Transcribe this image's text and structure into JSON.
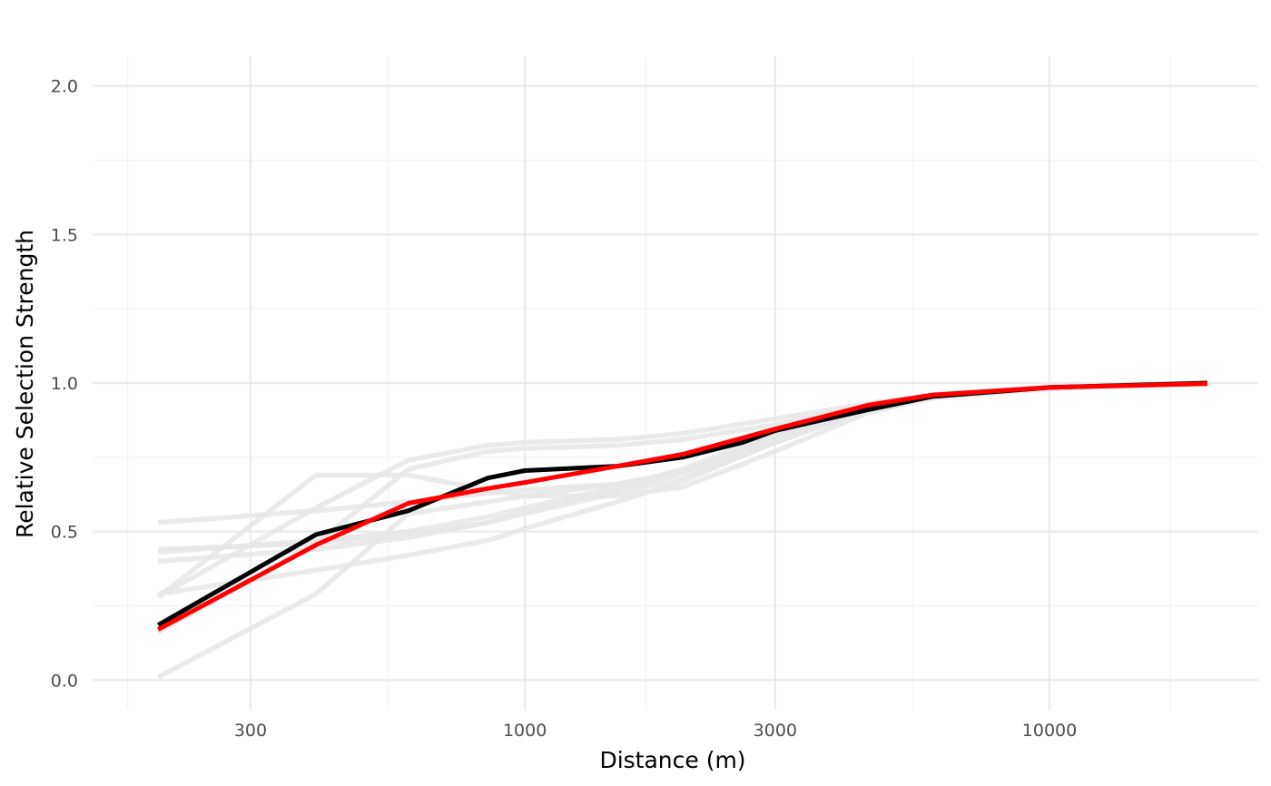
{
  "chart_data": {
    "type": "line",
    "xlabel": "Distance (m)",
    "ylabel": "Relative Selection Strength",
    "x_scale": "log10",
    "xlim": [
      150,
      25000
    ],
    "ylim": [
      -0.1,
      2.1
    ],
    "x_ticks": [
      300,
      1000,
      3000,
      10000
    ],
    "x_tick_labels": [
      "300",
      "1000",
      "3000",
      "10000"
    ],
    "x_minor_ticks": [
      175,
      550,
      1700,
      5500,
      17000
    ],
    "y_ticks": [
      0,
      0.5,
      1,
      1.5,
      2
    ],
    "y_tick_labels": [
      "0.0",
      "0.5",
      "1.0",
      "1.5",
      "2.0"
    ],
    "y_minor_ticks": [
      0.25,
      0.75,
      1.25,
      1.75
    ],
    "grid": true,
    "legend": "none",
    "colors": {
      "fit": "#ff0000",
      "observed": "#000000",
      "bootstrap": "#e6e6e6"
    },
    "series": [
      {
        "role": "bootstrap",
        "x": [
          200,
          400,
          600,
          850,
          1000,
          1500,
          2000,
          3000,
          4500,
          6000,
          10000,
          20000
        ],
        "y": [
          0.53,
          0.57,
          0.6,
          0.63,
          0.64,
          0.66,
          0.7,
          0.82,
          0.93,
          0.96,
          0.985,
          1.0
        ]
      },
      {
        "role": "bootstrap",
        "x": [
          200,
          400,
          600,
          850,
          1000,
          1500,
          2000,
          3000,
          4500,
          6000,
          10000,
          20000
        ],
        "y": [
          0.44,
          0.46,
          0.49,
          0.53,
          0.56,
          0.63,
          0.68,
          0.8,
          0.92,
          0.96,
          0.985,
          1.0
        ]
      },
      {
        "role": "bootstrap",
        "x": [
          200,
          400,
          600,
          850,
          1000,
          1500,
          2000,
          3000,
          4500,
          6000,
          10000,
          20000
        ],
        "y": [
          0.43,
          0.47,
          0.5,
          0.55,
          0.58,
          0.65,
          0.71,
          0.83,
          0.93,
          0.96,
          0.985,
          1.0
        ]
      },
      {
        "role": "bootstrap",
        "x": [
          200,
          400,
          600,
          850,
          1000,
          1500,
          2000,
          3000,
          4500,
          6000,
          10000,
          20000
        ],
        "y": [
          0.4,
          0.44,
          0.48,
          0.53,
          0.57,
          0.64,
          0.7,
          0.82,
          0.92,
          0.96,
          0.985,
          1.0
        ]
      },
      {
        "role": "bootstrap",
        "x": [
          200,
          400,
          600,
          850,
          1000,
          1500,
          2000,
          3000,
          4500,
          6000,
          10000,
          20000
        ],
        "y": [
          0.28,
          0.58,
          0.74,
          0.79,
          0.8,
          0.81,
          0.83,
          0.88,
          0.93,
          0.96,
          0.985,
          1.0
        ]
      },
      {
        "role": "bootstrap",
        "x": [
          200,
          400,
          600,
          850,
          1000,
          1500,
          2000,
          3000,
          4500,
          6000,
          10000,
          20000
        ],
        "y": [
          0.28,
          0.69,
          0.69,
          0.64,
          0.62,
          0.62,
          0.65,
          0.77,
          0.9,
          0.95,
          0.98,
          1.0
        ]
      },
      {
        "role": "bootstrap",
        "x": [
          200,
          400,
          600,
          850,
          1000,
          1500,
          2000,
          3000,
          4500,
          6000,
          10000,
          20000
        ],
        "y": [
          0.01,
          0.29,
          0.56,
          0.6,
          0.62,
          0.66,
          0.7,
          0.8,
          0.91,
          0.96,
          0.985,
          1.0
        ]
      },
      {
        "role": "bootstrap",
        "x": [
          200,
          400,
          600,
          850,
          1000,
          1500,
          2000,
          3000,
          4500,
          6000,
          10000,
          20000
        ],
        "y": [
          0.29,
          0.37,
          0.42,
          0.47,
          0.51,
          0.6,
          0.67,
          0.8,
          0.91,
          0.96,
          0.985,
          1.0
        ]
      },
      {
        "role": "bootstrap",
        "x": [
          200,
          400,
          600,
          850,
          1000,
          1500,
          2000,
          3000,
          4500,
          6000,
          10000,
          20000
        ],
        "y": [
          0.16,
          0.46,
          0.71,
          0.77,
          0.78,
          0.79,
          0.81,
          0.86,
          0.92,
          0.96,
          0.985,
          1.0
        ]
      },
      {
        "role": "observed",
        "x": [
          200,
          400,
          600,
          850,
          1000,
          1500,
          2000,
          2600,
          3000,
          4500,
          6000,
          10000,
          20000
        ],
        "y": [
          0.185,
          0.49,
          0.57,
          0.68,
          0.705,
          0.72,
          0.75,
          0.8,
          0.84,
          0.91,
          0.955,
          0.985,
          1.0
        ]
      },
      {
        "role": "fit",
        "x": [
          200,
          400,
          600,
          850,
          1000,
          1500,
          2000,
          3000,
          4500,
          6000,
          10000,
          20000
        ],
        "y": [
          0.17,
          0.455,
          0.595,
          0.645,
          0.665,
          0.72,
          0.76,
          0.845,
          0.925,
          0.96,
          0.985,
          0.998
        ]
      }
    ]
  }
}
